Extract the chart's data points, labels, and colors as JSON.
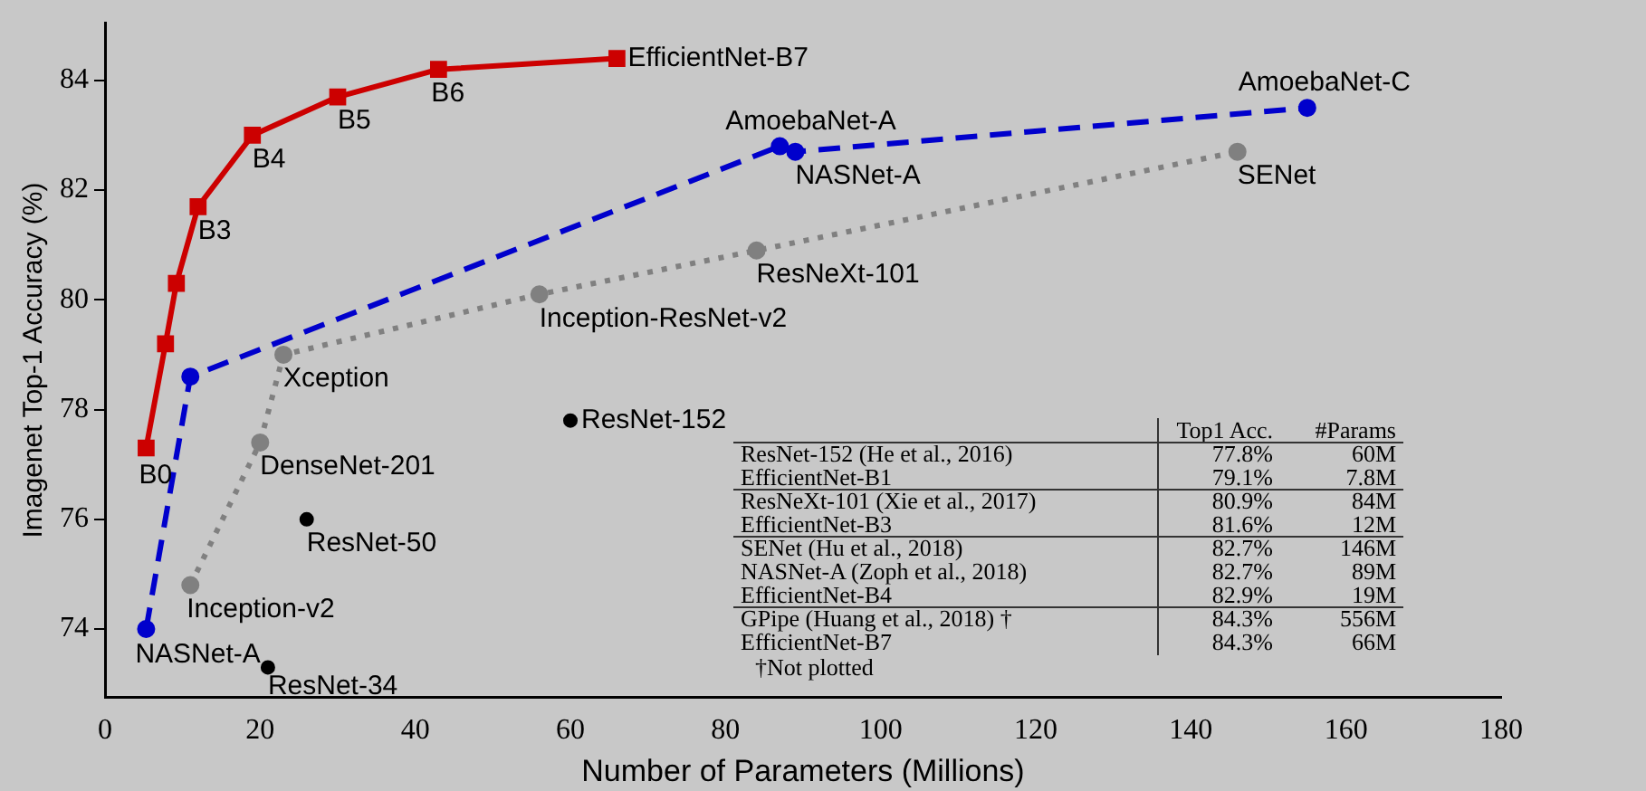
{
  "chart_data": {
    "type": "line",
    "xlabel": "Number of Parameters (Millions)",
    "ylabel": "Imagenet Top-1 Accuracy (%)",
    "xlim": [
      0,
      180
    ],
    "xticks": [
      0,
      20,
      40,
      60,
      80,
      100,
      120,
      140,
      160,
      180
    ],
    "ylim": [
      72.75,
      85.05
    ],
    "yticks": [
      74,
      76,
      78,
      80,
      82,
      84
    ],
    "grid": false,
    "legend": false,
    "series": [
      {
        "color": "#cc0000",
        "marker": "square",
        "line_style": "solid",
        "x": [
          5.3,
          7.8,
          9.2,
          12,
          19,
          30,
          43,
          66
        ],
        "values": [
          77.3,
          79.2,
          80.3,
          81.7,
          83.0,
          83.7,
          84.2,
          84.4
        ]
      },
      {
        "color": "#0000cc",
        "marker": "circle",
        "line_style": "dashed",
        "x": [
          5.3,
          11,
          87,
          89,
          155
        ],
        "values": [
          74.0,
          78.6,
          82.8,
          82.7,
          83.5
        ]
      },
      {
        "color": "#808080",
        "marker": "circle",
        "line_style": "dotted",
        "x": [
          11,
          20,
          23,
          56,
          84,
          146
        ],
        "values": [
          74.8,
          77.4,
          79.0,
          80.1,
          80.9,
          82.7
        ]
      },
      {
        "type": "scatter",
        "color": "#000000",
        "marker": "circle",
        "x": [
          21,
          26,
          60
        ],
        "values": [
          73.3,
          76.0,
          77.8
        ]
      }
    ],
    "annotations": [
      {
        "text": "B0",
        "x": 5.3,
        "y": 77.3
      },
      {
        "text": "B3",
        "x": 12,
        "y": 81.7
      },
      {
        "text": "B4",
        "x": 19,
        "y": 83.0
      },
      {
        "text": "B5",
        "x": 30,
        "y": 83.7
      },
      {
        "text": "B6",
        "x": 43,
        "y": 84.2
      },
      {
        "text": "EfficientNet-B7",
        "x": 66,
        "y": 84.4
      },
      {
        "text": "NASNet-A",
        "x": 5.3,
        "y": 74.0
      },
      {
        "text": "AmoebaNet-A",
        "x": 87,
        "y": 82.8
      },
      {
        "text": "NASNet-A",
        "x": 89,
        "y": 82.7
      },
      {
        "text": "AmoebaNet-C",
        "x": 155,
        "y": 83.5
      },
      {
        "text": "Inception-v2",
        "x": 11,
        "y": 74.8
      },
      {
        "text": "DenseNet-201",
        "x": 20,
        "y": 77.4
      },
      {
        "text": "Xception",
        "x": 23,
        "y": 79.0
      },
      {
        "text": "Inception-ResNet-v2",
        "x": 56,
        "y": 80.1
      },
      {
        "text": "ResNeXt-101",
        "x": 84,
        "y": 80.9
      },
      {
        "text": "SENet",
        "x": 146,
        "y": 82.7
      },
      {
        "text": "ResNet-34",
        "x": 21,
        "y": 73.3
      },
      {
        "text": "ResNet-50",
        "x": 26,
        "y": 76.0
      },
      {
        "text": "ResNet-152",
        "x": 60,
        "y": 77.8
      },
      "\tTop1 Acc.\t#Params",
      "ResNet-152 (He et al., 2016)\t77.8%\t60M",
      "EfficientNet-B1\t79.1%\t7.8M",
      "ResNeXt-101 (Xie et al., 2017)\t80.9%\t84M",
      "EfficientNet-B3\t81.6%\t12M",
      "SENet (Hu et al., 2018)\t82.7%\t146M",
      "NASNet-A (Zoph et al., 2018)\t82.7%\t89M",
      "EfficientNet-B4\t82.9%\t19M",
      "GPipe (Huang et al., 2018) †\t84.3%\t556M",
      "EfficientNet-B7\t84.3%\t66M",
      "†Not plotted"
    ]
  }
}
